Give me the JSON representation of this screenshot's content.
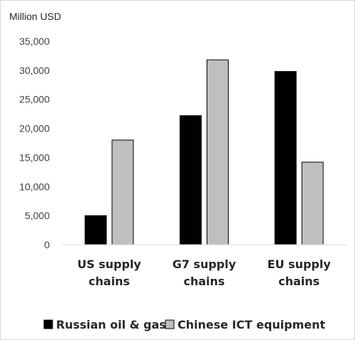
{
  "chart_data": {
    "type": "bar",
    "unit_label": "Million USD",
    "categories": [
      [
        "US supply",
        "chains"
      ],
      [
        "G7 supply",
        "chains"
      ],
      [
        "EU supply",
        "chains"
      ]
    ],
    "series": [
      {
        "name": "Russian oil & gas",
        "color": "#000000",
        "values": [
          5000,
          22200,
          29800
        ]
      },
      {
        "name": "Chinese ICT equipment",
        "color": "#bfbfbf",
        "values": [
          18000,
          31800,
          14200
        ]
      }
    ],
    "ylim": [
      0,
      35000
    ],
    "yticks": [
      "0",
      "5,000",
      "10,000",
      "15,000",
      "20,000",
      "25,000",
      "30,000",
      "35,000"
    ],
    "ytick_values": [
      0,
      5000,
      10000,
      15000,
      20000,
      25000,
      30000,
      35000
    ],
    "grid": false,
    "legend_position": "bottom"
  }
}
